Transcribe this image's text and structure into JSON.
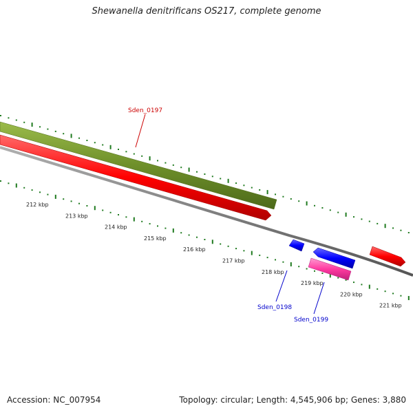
{
  "title": "Shewanella denitrificans OS217, complete genome",
  "footer": {
    "accession": "Accession: NC_007954",
    "summary": "Topology: circular; Length: 4,545,906 bp; Genes: 3,880"
  },
  "colors": {
    "forward_cds": "#ff0000",
    "reverse_cds": "#0000ff",
    "pink_cds": "#ff3aa0",
    "olive_feature": "#6e8f2a",
    "backbone": "#808080",
    "ticks": "#1f7a1f",
    "label_red": "#cc0000",
    "label_blue": "#0000cc"
  },
  "scale": {
    "ticks": [
      {
        "label": "212 kbp",
        "kbp": 212
      },
      {
        "label": "213 kbp",
        "kbp": 213
      },
      {
        "label": "214 kbp",
        "kbp": 214
      },
      {
        "label": "215 kbp",
        "kbp": 215
      },
      {
        "label": "216 kbp",
        "kbp": 216
      },
      {
        "label": "217 kbp",
        "kbp": 217
      },
      {
        "label": "218 kbp",
        "kbp": 218
      },
      {
        "label": "219 kbp",
        "kbp": 219
      },
      {
        "label": "220 kbp",
        "kbp": 220
      },
      {
        "label": "221 kbp",
        "kbp": 221
      }
    ]
  },
  "features": [
    {
      "name": "olive-feature-band",
      "color": "olive_feature",
      "lane": "outer",
      "start_kbp": 211.0,
      "end_kbp": 218.3
    },
    {
      "name": "red-cds",
      "color": "forward_cds",
      "lane": "forward",
      "start_kbp": 211.0,
      "end_kbp": 218.3
    },
    {
      "name": "blue-cds-small",
      "color": "reverse_cds",
      "lane": "reverse",
      "start_kbp": 218.6,
      "end_kbp": 218.9
    },
    {
      "name": "blue-cds-large",
      "color": "reverse_cds",
      "lane": "reverse",
      "start_kbp": 219.3,
      "end_kbp": 220.4
    },
    {
      "name": "pink-cds",
      "color": "pink_cds",
      "lane": "reverse-inner",
      "start_kbp": 219.1,
      "end_kbp": 220.2
    },
    {
      "name": "red-cds-right",
      "color": "forward_cds",
      "lane": "forward",
      "start_kbp": 221.0,
      "end_kbp": 221.8
    }
  ],
  "gene_labels": [
    {
      "text": "Sden_0197",
      "color": "label_red"
    },
    {
      "text": "Sden_0198",
      "color": "label_blue"
    },
    {
      "text": "Sden_0199",
      "color": "label_blue"
    }
  ]
}
